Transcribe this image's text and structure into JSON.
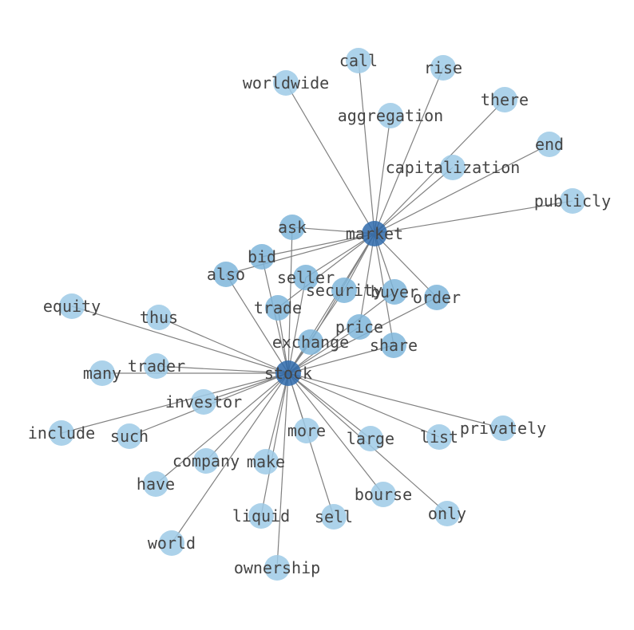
{
  "graph": {
    "colors": {
      "hub": "#2e6aab",
      "shared": "#7fb6db",
      "leaf": "#9ecae6",
      "edge": "#808080",
      "label": "#444444"
    },
    "node_alpha": 0.85,
    "nodes": [
      {
        "id": "market",
        "label": "market",
        "tier": "hub"
      },
      {
        "id": "stock",
        "label": "stock",
        "tier": "hub"
      },
      {
        "id": "worldwide",
        "label": "worldwide",
        "tier": "leaf"
      },
      {
        "id": "call",
        "label": "call",
        "tier": "leaf"
      },
      {
        "id": "rise",
        "label": "rise",
        "tier": "leaf"
      },
      {
        "id": "there",
        "label": "there",
        "tier": "leaf"
      },
      {
        "id": "aggregation",
        "label": "aggregation",
        "tier": "leaf"
      },
      {
        "id": "end",
        "label": "end",
        "tier": "leaf"
      },
      {
        "id": "capitalization",
        "label": "capitalization",
        "tier": "leaf"
      },
      {
        "id": "publicly",
        "label": "publicly",
        "tier": "leaf"
      },
      {
        "id": "ask",
        "label": "ask",
        "tier": "shared"
      },
      {
        "id": "bid",
        "label": "bid",
        "tier": "shared"
      },
      {
        "id": "also",
        "label": "also",
        "tier": "shared"
      },
      {
        "id": "seller",
        "label": "seller",
        "tier": "shared"
      },
      {
        "id": "security",
        "label": "security",
        "tier": "shared"
      },
      {
        "id": "buyer",
        "label": "buyer",
        "tier": "shared"
      },
      {
        "id": "order",
        "label": "order",
        "tier": "shared"
      },
      {
        "id": "trade",
        "label": "trade",
        "tier": "shared"
      },
      {
        "id": "price",
        "label": "price",
        "tier": "shared"
      },
      {
        "id": "exchange",
        "label": "exchange",
        "tier": "shared"
      },
      {
        "id": "share",
        "label": "share",
        "tier": "shared"
      },
      {
        "id": "equity",
        "label": "equity",
        "tier": "leaf"
      },
      {
        "id": "thus",
        "label": "thus",
        "tier": "leaf"
      },
      {
        "id": "many",
        "label": "many",
        "tier": "leaf"
      },
      {
        "id": "trader",
        "label": "trader",
        "tier": "leaf"
      },
      {
        "id": "investor",
        "label": "investor",
        "tier": "leaf"
      },
      {
        "id": "include",
        "label": "include",
        "tier": "leaf"
      },
      {
        "id": "such",
        "label": "such",
        "tier": "leaf"
      },
      {
        "id": "company",
        "label": "company",
        "tier": "leaf"
      },
      {
        "id": "make",
        "label": "make",
        "tier": "leaf"
      },
      {
        "id": "more",
        "label": "more",
        "tier": "leaf"
      },
      {
        "id": "large",
        "label": "large",
        "tier": "leaf"
      },
      {
        "id": "list",
        "label": "list",
        "tier": "leaf"
      },
      {
        "id": "privately",
        "label": "privately",
        "tier": "leaf"
      },
      {
        "id": "have",
        "label": "have",
        "tier": "leaf"
      },
      {
        "id": "liquid",
        "label": "liquid",
        "tier": "leaf"
      },
      {
        "id": "sell",
        "label": "sell",
        "tier": "leaf"
      },
      {
        "id": "bourse",
        "label": "bourse",
        "tier": "leaf"
      },
      {
        "id": "only",
        "label": "only",
        "tier": "leaf"
      },
      {
        "id": "world",
        "label": "world",
        "tier": "leaf"
      },
      {
        "id": "ownership",
        "label": "ownership",
        "tier": "leaf"
      }
    ],
    "edges": [
      [
        "market",
        "stock"
      ],
      [
        "market",
        "worldwide"
      ],
      [
        "market",
        "call"
      ],
      [
        "market",
        "rise"
      ],
      [
        "market",
        "there"
      ],
      [
        "market",
        "aggregation"
      ],
      [
        "market",
        "end"
      ],
      [
        "market",
        "capitalization"
      ],
      [
        "market",
        "publicly"
      ],
      [
        "market",
        "ask"
      ],
      [
        "market",
        "bid"
      ],
      [
        "market",
        "also"
      ],
      [
        "market",
        "seller"
      ],
      [
        "market",
        "security"
      ],
      [
        "market",
        "buyer"
      ],
      [
        "market",
        "order"
      ],
      [
        "market",
        "trade"
      ],
      [
        "market",
        "price"
      ],
      [
        "market",
        "exchange"
      ],
      [
        "market",
        "share"
      ],
      [
        "stock",
        "ask"
      ],
      [
        "stock",
        "bid"
      ],
      [
        "stock",
        "also"
      ],
      [
        "stock",
        "seller"
      ],
      [
        "stock",
        "security"
      ],
      [
        "stock",
        "buyer"
      ],
      [
        "stock",
        "order"
      ],
      [
        "stock",
        "trade"
      ],
      [
        "stock",
        "price"
      ],
      [
        "stock",
        "exchange"
      ],
      [
        "stock",
        "share"
      ],
      [
        "stock",
        "equity"
      ],
      [
        "stock",
        "thus"
      ],
      [
        "stock",
        "many"
      ],
      [
        "stock",
        "trader"
      ],
      [
        "stock",
        "investor"
      ],
      [
        "stock",
        "include"
      ],
      [
        "stock",
        "such"
      ],
      [
        "stock",
        "company"
      ],
      [
        "stock",
        "make"
      ],
      [
        "stock",
        "more"
      ],
      [
        "stock",
        "large"
      ],
      [
        "stock",
        "list"
      ],
      [
        "stock",
        "privately"
      ],
      [
        "stock",
        "have"
      ],
      [
        "stock",
        "liquid"
      ],
      [
        "stock",
        "sell"
      ],
      [
        "stock",
        "bourse"
      ],
      [
        "stock",
        "only"
      ],
      [
        "stock",
        "world"
      ],
      [
        "stock",
        "ownership"
      ]
    ]
  }
}
